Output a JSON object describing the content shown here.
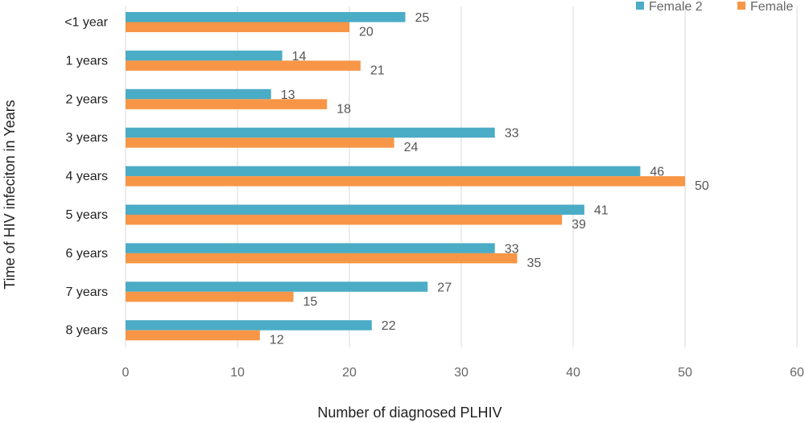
{
  "chart_data": {
    "type": "bar",
    "orientation": "horizontal",
    "categories": [
      "<1 year",
      "1 years",
      "2 years",
      "3 years",
      "4 years",
      "5 years",
      "6 years",
      "7 years",
      "8 years"
    ],
    "series": [
      {
        "name": "Female 2",
        "color": "#4BACC6",
        "values": [
          25,
          14,
          13,
          33,
          46,
          41,
          33,
          27,
          22
        ]
      },
      {
        "name": "Female",
        "color": "#F79646",
        "values": [
          20,
          21,
          18,
          24,
          50,
          39,
          35,
          15,
          12
        ]
      }
    ],
    "xlabel": "Number of diagnosed PLHIV",
    "ylabel": "Time of HIV infeciton in Years",
    "xlim": [
      0,
      60
    ],
    "xticks": [
      0,
      10,
      20,
      30,
      40,
      50,
      60
    ],
    "grid": true,
    "legend_position": "top-right",
    "data_labels": true
  }
}
